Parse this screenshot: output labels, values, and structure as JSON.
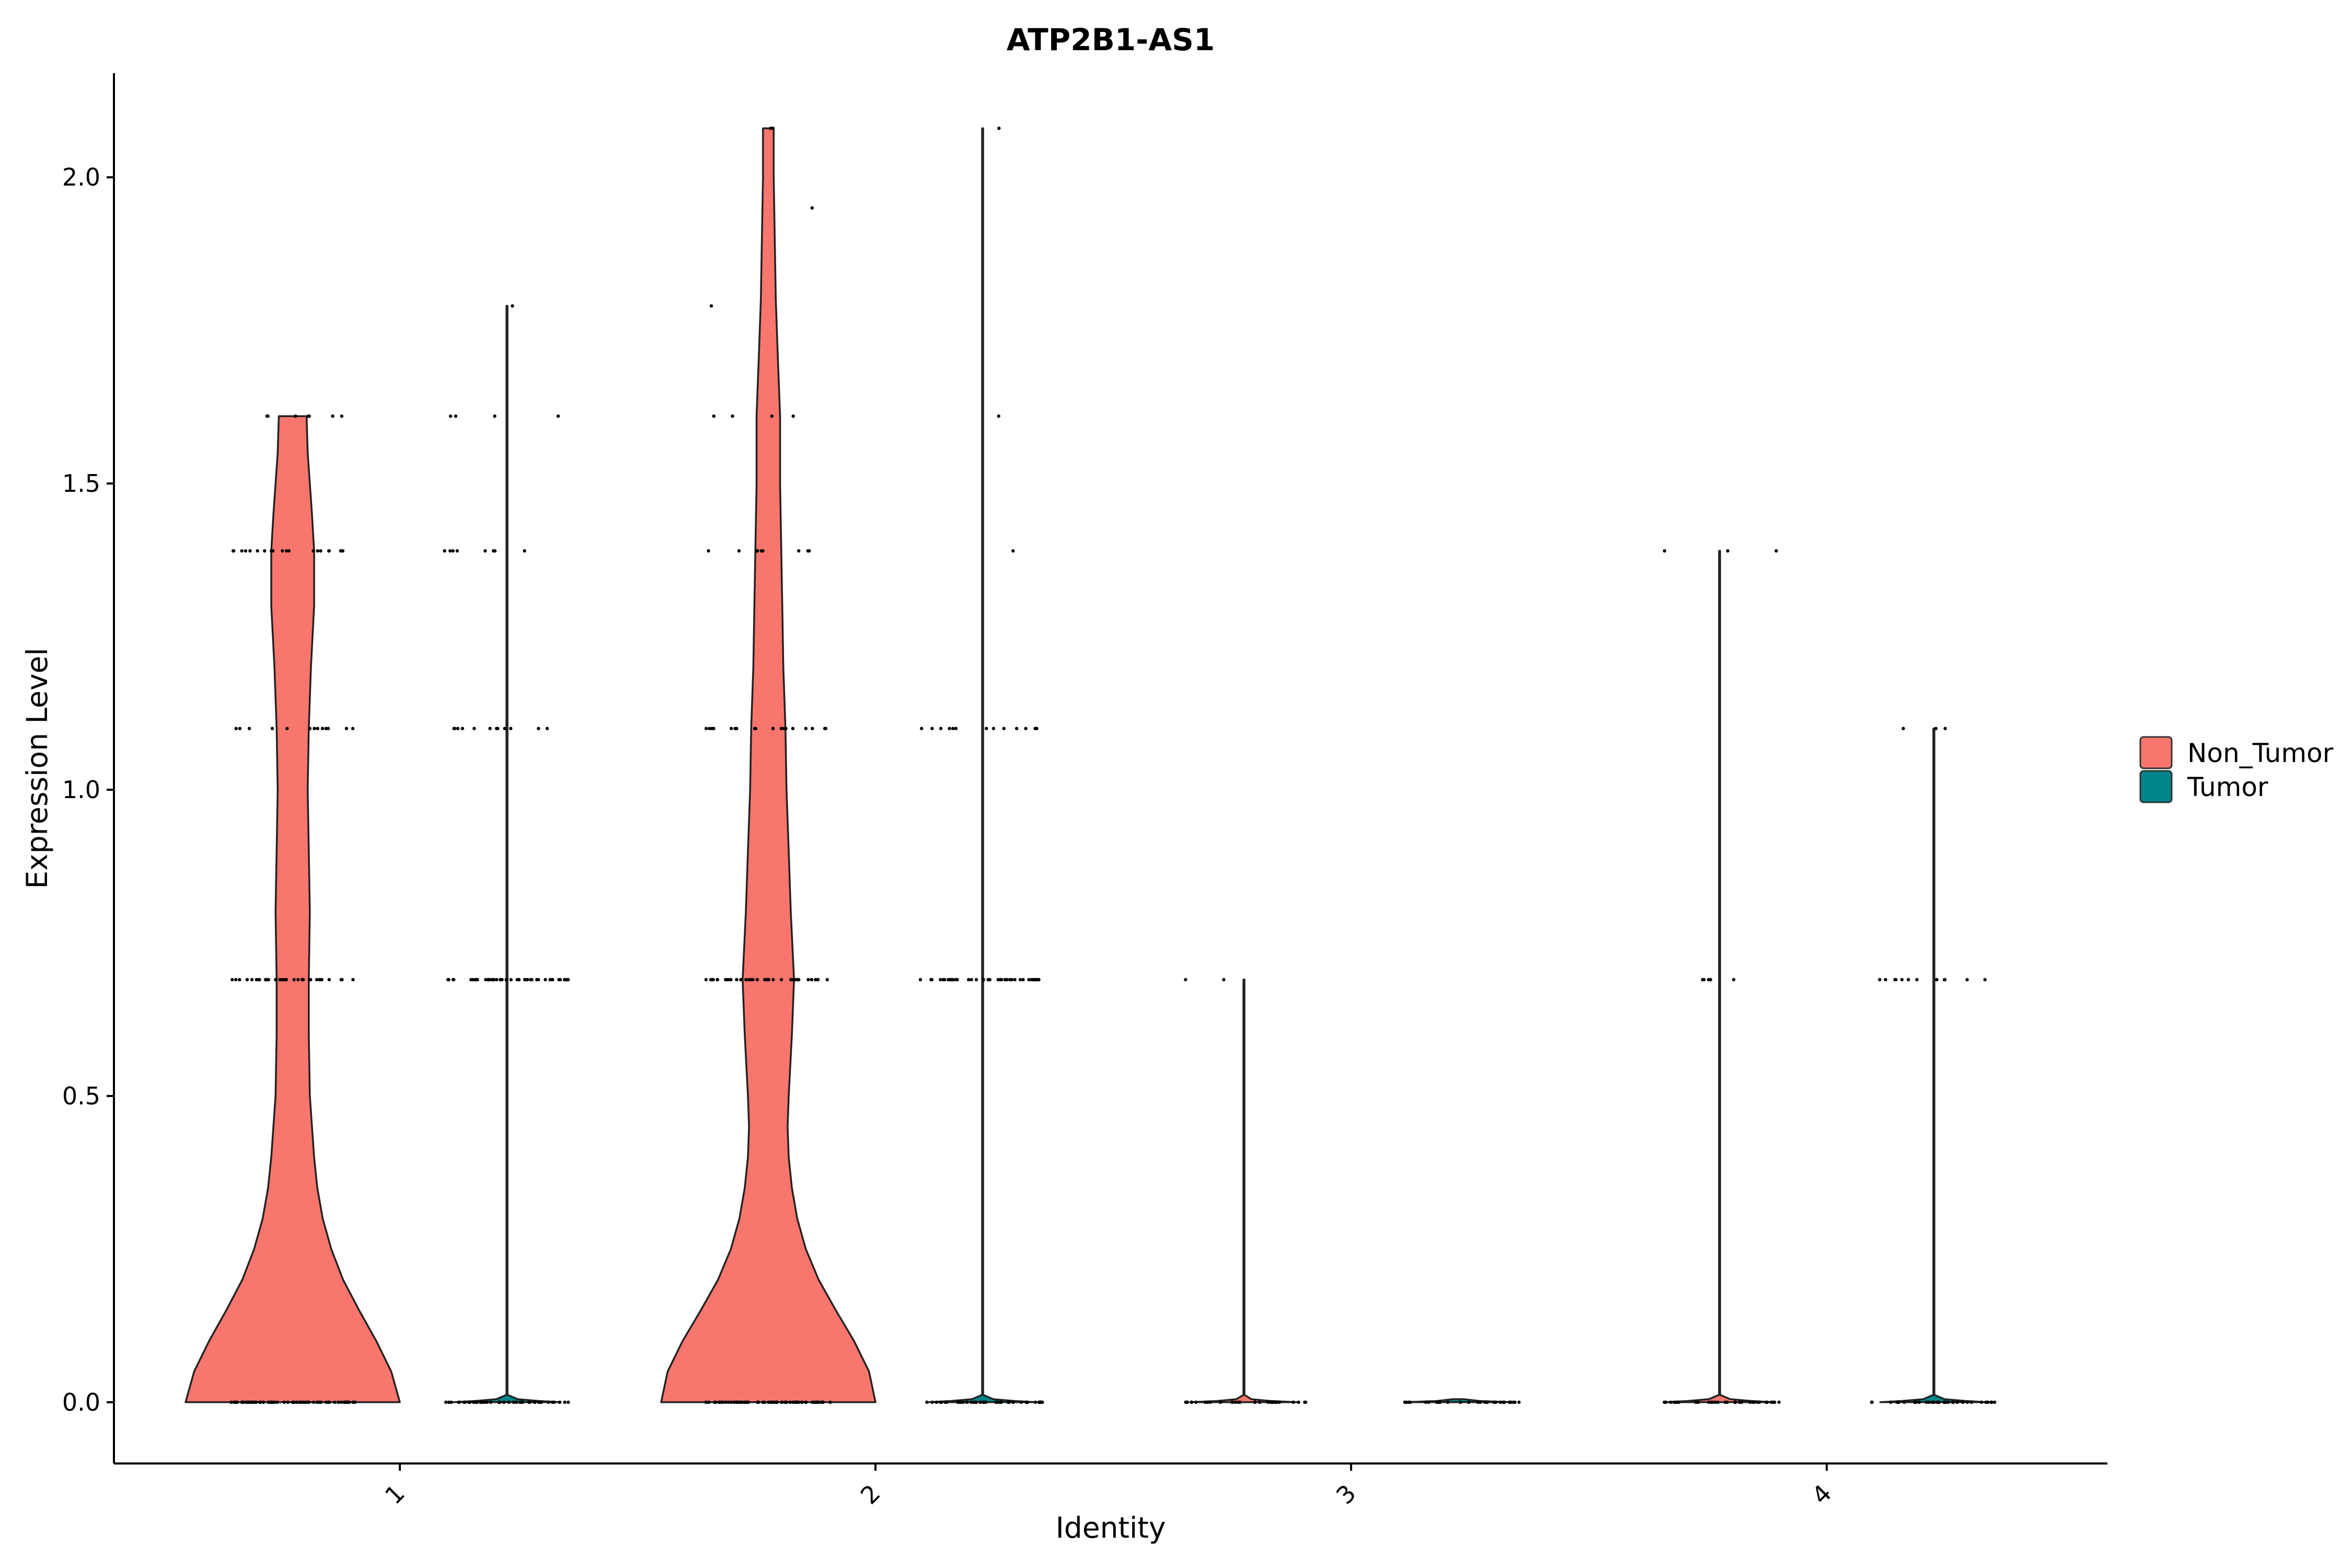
{
  "chart_data": {
    "type": "violin",
    "title": "ATP2B1-AS1",
    "xlabel": "Identity",
    "ylabel": "Expression Level",
    "ylim": [
      -0.1,
      2.17
    ],
    "yticks": [
      "0.0",
      "0.5",
      "1.0",
      "1.5",
      "2.0"
    ],
    "categories": [
      "1",
      "2",
      "3",
      "4"
    ],
    "x_tick_rotation_deg": 45,
    "grid": false,
    "legend": {
      "placement": "right",
      "entries": [
        {
          "name": "Non_Tumor",
          "color": "#F8766D"
        },
        {
          "name": "Tumor",
          "color": "#00868B"
        }
      ]
    },
    "series": [
      {
        "name": "Non_Tumor",
        "color": "#F8766D",
        "violins": [
          {
            "category": "1",
            "max": 1.61,
            "density": [
              [
                0.0,
                1.0
              ],
              [
                0.05,
                0.92
              ],
              [
                0.1,
                0.78
              ],
              [
                0.15,
                0.62
              ],
              [
                0.2,
                0.47
              ],
              [
                0.25,
                0.36
              ],
              [
                0.3,
                0.28
              ],
              [
                0.35,
                0.23
              ],
              [
                0.4,
                0.2
              ],
              [
                0.45,
                0.18
              ],
              [
                0.5,
                0.16
              ],
              [
                0.6,
                0.15
              ],
              [
                0.69,
                0.15
              ],
              [
                0.8,
                0.16
              ],
              [
                0.9,
                0.15
              ],
              [
                1.0,
                0.14
              ],
              [
                1.1,
                0.15
              ],
              [
                1.2,
                0.17
              ],
              [
                1.3,
                0.2
              ],
              [
                1.39,
                0.2
              ],
              [
                1.45,
                0.18
              ],
              [
                1.5,
                0.16
              ],
              [
                1.55,
                0.14
              ],
              [
                1.61,
                0.13
              ]
            ],
            "points": [
              [
                0.0,
                70
              ],
              [
                0.69,
                32
              ],
              [
                1.1,
                14
              ],
              [
                1.39,
                20
              ],
              [
                1.61,
                7
              ]
            ]
          },
          {
            "category": "2",
            "max": 2.08,
            "density": [
              [
                0.0,
                1.0
              ],
              [
                0.05,
                0.94
              ],
              [
                0.1,
                0.8
              ],
              [
                0.15,
                0.63
              ],
              [
                0.2,
                0.47
              ],
              [
                0.25,
                0.35
              ],
              [
                0.3,
                0.27
              ],
              [
                0.35,
                0.22
              ],
              [
                0.4,
                0.19
              ],
              [
                0.45,
                0.18
              ],
              [
                0.5,
                0.19
              ],
              [
                0.6,
                0.22
              ],
              [
                0.69,
                0.24
              ],
              [
                0.8,
                0.21
              ],
              [
                0.9,
                0.19
              ],
              [
                1.0,
                0.17
              ],
              [
                1.1,
                0.16
              ],
              [
                1.2,
                0.14
              ],
              [
                1.3,
                0.13
              ],
              [
                1.4,
                0.12
              ],
              [
                1.5,
                0.11
              ],
              [
                1.61,
                0.11
              ],
              [
                1.7,
                0.09
              ],
              [
                1.8,
                0.07
              ],
              [
                1.9,
                0.06
              ],
              [
                2.0,
                0.05
              ],
              [
                2.08,
                0.05
              ]
            ],
            "points": [
              [
                0.0,
                70
              ],
              [
                0.69,
                38
              ],
              [
                1.1,
                18
              ],
              [
                1.39,
                10
              ],
              [
                1.61,
                4
              ],
              [
                1.79,
                1
              ],
              [
                1.95,
                1
              ],
              [
                2.08,
                2
              ]
            ]
          },
          {
            "category": "3",
            "max": 0.69,
            "density": [
              [
                0.0,
                0.5
              ],
              [
                0.002,
                0.25
              ],
              [
                0.005,
                0.07
              ],
              [
                0.012,
                0.005
              ],
              [
                0.05,
                0.005
              ],
              [
                0.69,
                0.005
              ]
            ],
            "points": [
              [
                0.0,
                30
              ],
              [
                0.69,
                2
              ]
            ]
          },
          {
            "category": "4",
            "max": 1.39,
            "density": [
              [
                0.0,
                0.5
              ],
              [
                0.002,
                0.3
              ],
              [
                0.005,
                0.1
              ],
              [
                0.012,
                0.005
              ],
              [
                0.05,
                0.005
              ],
              [
                1.39,
                0.005
              ]
            ],
            "points": [
              [
                0.0,
                35
              ],
              [
                0.69,
                5
              ],
              [
                1.39,
                3
              ]
            ]
          }
        ]
      },
      {
        "name": "Tumor",
        "color": "#00868B",
        "violins": [
          {
            "category": "1",
            "max": 1.79,
            "density": [
              [
                0.0,
                0.5
              ],
              [
                0.002,
                0.3
              ],
              [
                0.005,
                0.1
              ],
              [
                0.012,
                0.005
              ],
              [
                0.05,
                0.005
              ],
              [
                1.79,
                0.005
              ]
            ],
            "points": [
              [
                0.0,
                45
              ],
              [
                0.69,
                45
              ],
              [
                1.1,
                12
              ],
              [
                1.39,
                8
              ],
              [
                1.61,
                4
              ],
              [
                1.79,
                1
              ]
            ]
          },
          {
            "category": "2",
            "max": 2.08,
            "density": [
              [
                0.0,
                0.5
              ],
              [
                0.002,
                0.3
              ],
              [
                0.005,
                0.1
              ],
              [
                0.012,
                0.005
              ],
              [
                0.05,
                0.005
              ],
              [
                2.08,
                0.005
              ]
            ],
            "points": [
              [
                0.0,
                45
              ],
              [
                0.69,
                40
              ],
              [
                1.1,
                14
              ],
              [
                1.39,
                1
              ],
              [
                1.61,
                1
              ],
              [
                2.08,
                1
              ]
            ]
          },
          {
            "category": "3",
            "max": 0.0,
            "density": [
              [
                0.0,
                0.5
              ],
              [
                0.002,
                0.2
              ],
              [
                0.005,
                0.05
              ]
            ],
            "points": [
              [
                0.0,
                30
              ]
            ]
          },
          {
            "category": "4",
            "max": 1.1,
            "density": [
              [
                0.0,
                0.5
              ],
              [
                0.002,
                0.3
              ],
              [
                0.005,
                0.1
              ],
              [
                0.012,
                0.005
              ],
              [
                0.05,
                0.005
              ],
              [
                1.1,
                0.005
              ]
            ],
            "points": [
              [
                0.0,
                35
              ],
              [
                0.69,
                12
              ],
              [
                1.1,
                3
              ]
            ]
          }
        ]
      }
    ]
  }
}
